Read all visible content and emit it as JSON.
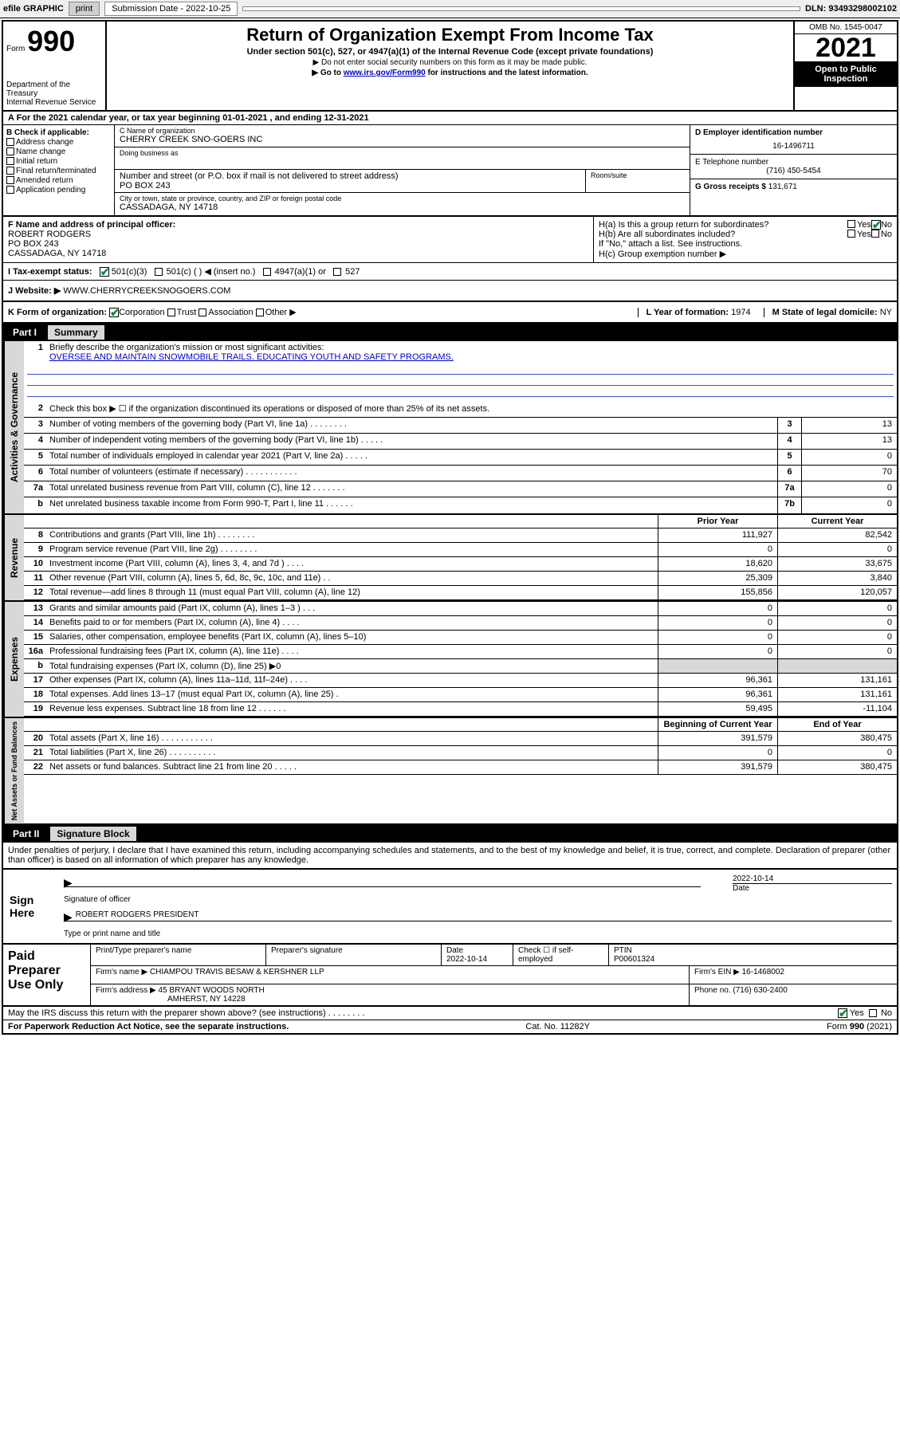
{
  "topbar": {
    "efile_label": "efile GRAPHIC",
    "print_btn": "print",
    "submission_label": "Submission Date - 2022-10-25",
    "dln_label": "DLN: 93493298002102"
  },
  "header": {
    "form_prefix": "Form",
    "form_number": "990",
    "dept": "Department of the Treasury\nInternal Revenue Service",
    "title": "Return of Organization Exempt From Income Tax",
    "subtitle": "Under section 501(c), 527, or 4947(a)(1) of the Internal Revenue Code (except private foundations)",
    "note1": "▶ Do not enter social security numbers on this form as it may be made public.",
    "note2_prefix": "▶ Go to ",
    "note2_link": "www.irs.gov/Form990",
    "note2_suffix": " for instructions and the latest information.",
    "omb": "OMB No. 1545-0047",
    "year": "2021",
    "inspection": "Open to Public Inspection"
  },
  "period": {
    "text": "A For the 2021 calendar year, or tax year beginning 01-01-2021   , and ending 12-31-2021"
  },
  "col_b": {
    "header": "B Check if applicable:",
    "items": [
      "Address change",
      "Name change",
      "Initial return",
      "Final return/terminated",
      "Amended return",
      "Application pending"
    ]
  },
  "entity": {
    "name_lbl": "C Name of organization",
    "name": "CHERRY CREEK SNO-GOERS INC",
    "dba_lbl": "Doing business as",
    "addr_lbl": "Number and street (or P.O. box if mail is not delivered to street address)",
    "room_lbl": "Room/suite",
    "addr": "PO BOX 243",
    "city_lbl": "City or town, state or province, country, and ZIP or foreign postal code",
    "city": "CASSADAGA, NY  14718"
  },
  "right_col": {
    "ein_lbl": "D Employer identification number",
    "ein": "16-1496711",
    "phone_lbl": "E Telephone number",
    "phone": "(716) 450-5454",
    "gross_lbl": "G Gross receipts $",
    "gross": "131,671"
  },
  "officer": {
    "lbl": "F Name and address of principal officer:",
    "name": "ROBERT RODGERS",
    "addr1": "PO BOX 243",
    "addr2": "CASSADAGA, NY  14718"
  },
  "h_section": {
    "ha": "H(a)  Is this a group return for subordinates?",
    "hb": "H(b)  Are all subordinates included?",
    "hb_note": "If \"No,\" attach a list. See instructions.",
    "hc": "H(c)  Group exemption number ▶",
    "yes": "Yes",
    "no": "No"
  },
  "status_row": {
    "lbl": "I   Tax-exempt status:",
    "opt1": "501(c)(3)",
    "opt2": "501(c) (  ) ◀ (insert no.)",
    "opt3": "4947(a)(1) or",
    "opt4": "527"
  },
  "website": {
    "lbl": "J   Website: ▶",
    "val": "WWW.CHERRYCREEKSNOGOERS.COM"
  },
  "row_k": {
    "lbl": "K Form of organization:",
    "opts": [
      "Corporation",
      "Trust",
      "Association",
      "Other ▶"
    ],
    "year_lbl": "L Year of formation:",
    "year_val": "1974",
    "state_lbl": "M State of legal domicile:",
    "state_val": "NY"
  },
  "part1": {
    "part": "Part I",
    "title": "Summary"
  },
  "mission": {
    "num": "1",
    "lbl": "Briefly describe the organization's mission or most significant activities:",
    "text": "OVERSEE AND MAINTAIN SNOWMOBILE TRAILS. EDUCATING YOUTH AND SAFETY PROGRAMS."
  },
  "governance_lines": [
    {
      "n": "2",
      "d": "Check this box ▶ ☐  if the organization discontinued its operations or disposed of more than 25% of its net assets.",
      "box": "",
      "v": ""
    },
    {
      "n": "3",
      "d": "Number of voting members of the governing body (Part VI, line 1a)   .   .   .   .   .   .   .   .",
      "box": "3",
      "v": "13"
    },
    {
      "n": "4",
      "d": "Number of independent voting members of the governing body (Part VI, line 1b)   .   .   .   .   .",
      "box": "4",
      "v": "13"
    },
    {
      "n": "5",
      "d": "Total number of individuals employed in calendar year 2021 (Part V, line 2a)   .   .   .   .   .",
      "box": "5",
      "v": "0"
    },
    {
      "n": "6",
      "d": "Total number of volunteers (estimate if necessary)   .   .   .   .   .   .   .   .   .   .   .",
      "box": "6",
      "v": "70"
    },
    {
      "n": "7a",
      "d": "Total unrelated business revenue from Part VIII, column (C), line 12   .   .   .   .   .   .   .",
      "box": "7a",
      "v": "0"
    },
    {
      "n": "b",
      "d": "Net unrelated business taxable income from Form 990-T, Part I, line 11   .   .   .   .   .   .",
      "box": "7b",
      "v": "0"
    }
  ],
  "col_headers": {
    "prior": "Prior Year",
    "current": "Current Year",
    "bcy": "Beginning of Current Year",
    "eoy": "End of Year"
  },
  "revenue": [
    {
      "n": "8",
      "d": "Contributions and grants (Part VIII, line 1h)   .   .   .   .   .   .   .   .",
      "p": "111,927",
      "c": "82,542"
    },
    {
      "n": "9",
      "d": "Program service revenue (Part VIII, line 2g)   .   .   .   .   .   .   .   .",
      "p": "0",
      "c": "0"
    },
    {
      "n": "10",
      "d": "Investment income (Part VIII, column (A), lines 3, 4, and 7d )   .   .   .   .",
      "p": "18,620",
      "c": "33,675"
    },
    {
      "n": "11",
      "d": "Other revenue (Part VIII, column (A), lines 5, 6d, 8c, 9c, 10c, and 11e)   .   .",
      "p": "25,309",
      "c": "3,840"
    },
    {
      "n": "12",
      "d": "Total revenue—add lines 8 through 11 (must equal Part VIII, column (A), line 12)",
      "p": "155,856",
      "c": "120,057"
    }
  ],
  "expenses": [
    {
      "n": "13",
      "d": "Grants and similar amounts paid (Part IX, column (A), lines 1–3 )   .   .   .",
      "p": "0",
      "c": "0"
    },
    {
      "n": "14",
      "d": "Benefits paid to or for members (Part IX, column (A), line 4)   .   .   .   .",
      "p": "0",
      "c": "0"
    },
    {
      "n": "15",
      "d": "Salaries, other compensation, employee benefits (Part IX, column (A), lines 5–10)",
      "p": "0",
      "c": "0"
    },
    {
      "n": "16a",
      "d": "Professional fundraising fees (Part IX, column (A), line 11e)   .   .   .   .",
      "p": "0",
      "c": "0"
    },
    {
      "n": "b",
      "d": "Total fundraising expenses (Part IX, column (D), line 25) ▶0",
      "p": "",
      "c": "",
      "shade": true
    },
    {
      "n": "17",
      "d": "Other expenses (Part IX, column (A), lines 11a–11d, 11f–24e)   .   .   .   .",
      "p": "96,361",
      "c": "131,161"
    },
    {
      "n": "18",
      "d": "Total expenses. Add lines 13–17 (must equal Part IX, column (A), line 25)   .",
      "p": "96,361",
      "c": "131,161"
    },
    {
      "n": "19",
      "d": "Revenue less expenses. Subtract line 18 from line 12   .   .   .   .   .   .",
      "p": "59,495",
      "c": "-11,104"
    }
  ],
  "netassets": [
    {
      "n": "20",
      "d": "Total assets (Part X, line 16)   .   .   .   .   .   .   .   .   .   .   .",
      "p": "391,579",
      "c": "380,475"
    },
    {
      "n": "21",
      "d": "Total liabilities (Part X, line 26)   .   .   .   .   .   .   .   .   .   .",
      "p": "0",
      "c": "0"
    },
    {
      "n": "22",
      "d": "Net assets or fund balances. Subtract line 21 from line 20   .   .   .   .   .",
      "p": "391,579",
      "c": "380,475"
    }
  ],
  "vlabels": {
    "gov": "Activities & Governance",
    "rev": "Revenue",
    "exp": "Expenses",
    "net": "Net Assets or Fund Balances"
  },
  "part2": {
    "part": "Part II",
    "title": "Signature Block"
  },
  "penalties": "Under penalties of perjury, I declare that I have examined this return, including accompanying schedules and statements, and to the best of my knowledge and belief, it is true, correct, and complete. Declaration of preparer (other than officer) is based on all information of which preparer has any knowledge.",
  "sign": {
    "label": "Sign Here",
    "sig_lbl": "Signature of officer",
    "date_lbl": "Date",
    "date": "2022-10-14",
    "name": "ROBERT RODGERS  PRESIDENT",
    "name_lbl": "Type or print name and title"
  },
  "preparer": {
    "label": "Paid Preparer Use Only",
    "print_lbl": "Print/Type preparer's name",
    "sig_lbl": "Preparer's signature",
    "date_lbl": "Date",
    "date": "2022-10-14",
    "check_lbl": "Check ☐ if self-employed",
    "ptin_lbl": "PTIN",
    "ptin": "P00601324",
    "firm_name_lbl": "Firm's name    ▶",
    "firm_name": "CHIAMPOU TRAVIS BESAW & KERSHNER LLP",
    "firm_ein_lbl": "Firm's EIN ▶",
    "firm_ein": "16-1468002",
    "firm_addr_lbl": "Firm's address ▶",
    "firm_addr1": "45 BRYANT WOODS NORTH",
    "firm_addr2": "AMHERST, NY  14228",
    "phone_lbl": "Phone no.",
    "phone": "(716) 630-2400"
  },
  "discuss": {
    "q": "May the IRS discuss this return with the preparer shown above? (see instructions)   .   .   .   .   .   .   .   .",
    "yes": "Yes",
    "no": "No"
  },
  "footer": {
    "left": "For Paperwork Reduction Act Notice, see the separate instructions.",
    "mid": "Cat. No. 11282Y",
    "right": "Form 990 (2021)"
  }
}
